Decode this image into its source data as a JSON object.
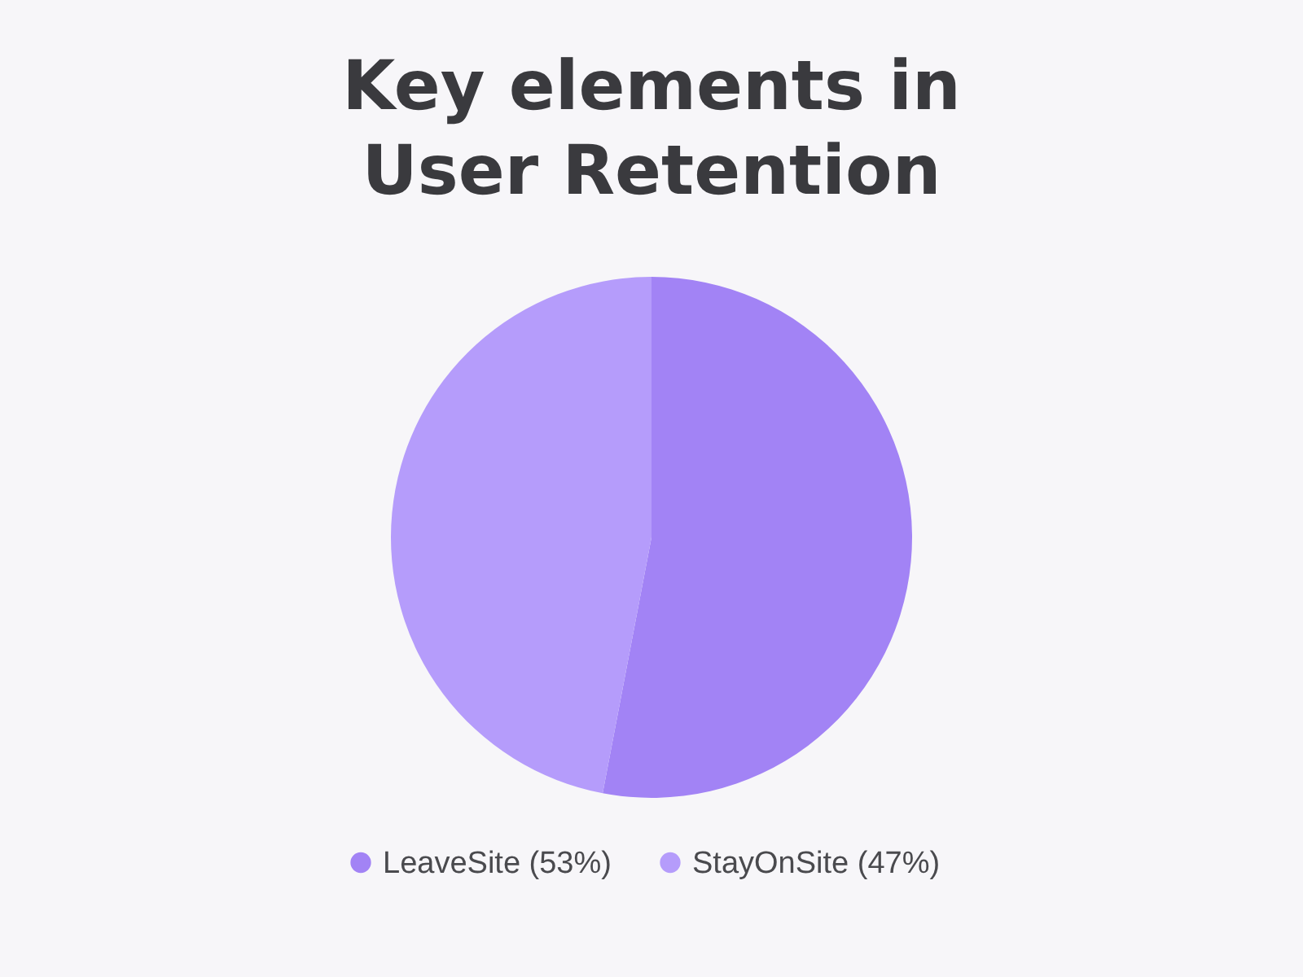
{
  "chart_data": {
    "type": "pie",
    "title": "Key elements in User Retention",
    "categories": [
      "LeaveSite (53%)",
      "StayOnSite (47%)"
    ],
    "values": [
      53,
      47
    ],
    "colors": [
      "#a283f5",
      "#b59cfb"
    ],
    "legend": "bottom"
  }
}
